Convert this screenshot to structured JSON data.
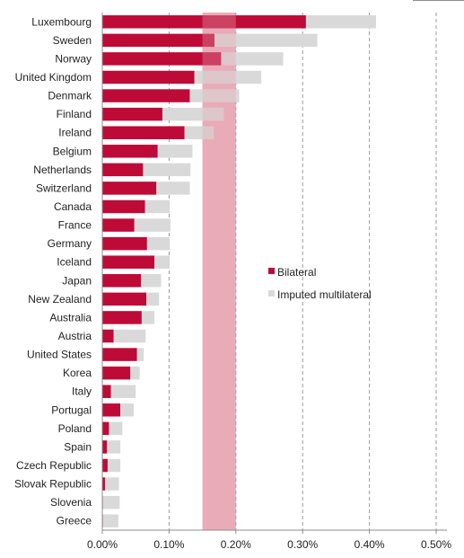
{
  "chart_data": {
    "type": "bar",
    "orientation": "horizontal",
    "stacked": true,
    "categories": [
      "Luxembourg",
      "Sweden",
      "Norway",
      "United Kingdom",
      "Denmark",
      "Finland",
      "Ireland",
      "Belgium",
      "Netherlands",
      "Switzerland",
      "Canada",
      "France",
      "Germany",
      "Iceland",
      "Japan",
      "New Zealand",
      "Australia",
      "Austria",
      "United States",
      "Korea",
      "Italy",
      "Portugal",
      "Poland",
      "Spain",
      "Czech Republic",
      "Slovak Republic",
      "Slovenia",
      "Greece"
    ],
    "series": [
      {
        "name": "Bilateral",
        "color": "#be0a37",
        "values": [
          0.305,
          0.168,
          0.178,
          0.138,
          0.131,
          0.09,
          0.123,
          0.083,
          0.061,
          0.081,
          0.064,
          0.048,
          0.067,
          0.078,
          0.058,
          0.066,
          0.059,
          0.017,
          0.052,
          0.042,
          0.013,
          0.027,
          0.01,
          0.007,
          0.008,
          0.004,
          0.001,
          0.001
        ]
      },
      {
        "name": "Imputed multilateral",
        "color": "#d9d9d9",
        "values": [
          0.105,
          0.154,
          0.093,
          0.1,
          0.074,
          0.092,
          0.044,
          0.052,
          0.071,
          0.05,
          0.037,
          0.054,
          0.034,
          0.023,
          0.03,
          0.019,
          0.019,
          0.048,
          0.01,
          0.014,
          0.037,
          0.02,
          0.02,
          0.02,
          0.019,
          0.021,
          0.025,
          0.023
        ]
      }
    ],
    "xlim": [
      0,
      0.5
    ],
    "xticks": [
      0,
      0.1,
      0.2,
      0.3,
      0.4,
      0.5
    ],
    "xtick_labels": [
      "0.00%",
      "0.10%",
      "0.20%",
      "0.30%",
      "0.40%",
      "0.50%"
    ],
    "highlight_band": {
      "from": 0.15,
      "to": 0.2,
      "color": "#e8a5b2"
    },
    "grid": "vertical dashed",
    "legend_placement": "right-middle"
  }
}
